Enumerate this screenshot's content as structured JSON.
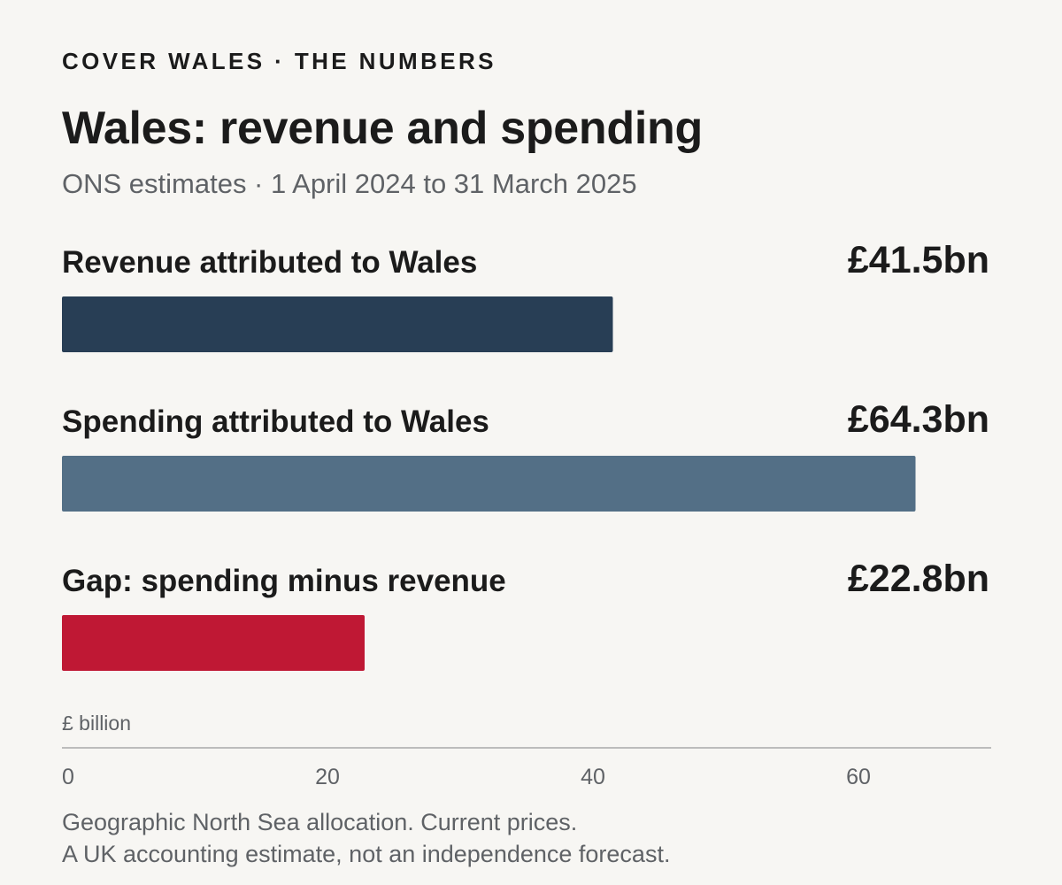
{
  "header": {
    "kicker": "COVER WALES · THE NUMBERS",
    "title": "Wales: revenue and spending",
    "subtitle": "ONS estimates · 1 April 2024 to 31 March 2025"
  },
  "chart_data": {
    "type": "bar",
    "orientation": "horizontal",
    "categories": [
      "Revenue attributed to Wales",
      "Spending attributed to Wales",
      "Gap: spending minus revenue"
    ],
    "values": [
      41.5,
      64.3,
      22.8
    ],
    "value_labels": [
      "£41.5bn",
      "£64.3bn",
      "£22.8bn"
    ],
    "colors": [
      "#283e55",
      "#536f86",
      "#bf1834"
    ],
    "xlabel": "£ billion",
    "xticks": [
      "0",
      "20",
      "40",
      "60"
    ],
    "xlim": [
      0,
      70
    ],
    "grid": false
  },
  "footer": {
    "notes": [
      "Geographic North Sea allocation. Current prices.",
      "A UK accounting estimate, not an independence forecast."
    ]
  }
}
